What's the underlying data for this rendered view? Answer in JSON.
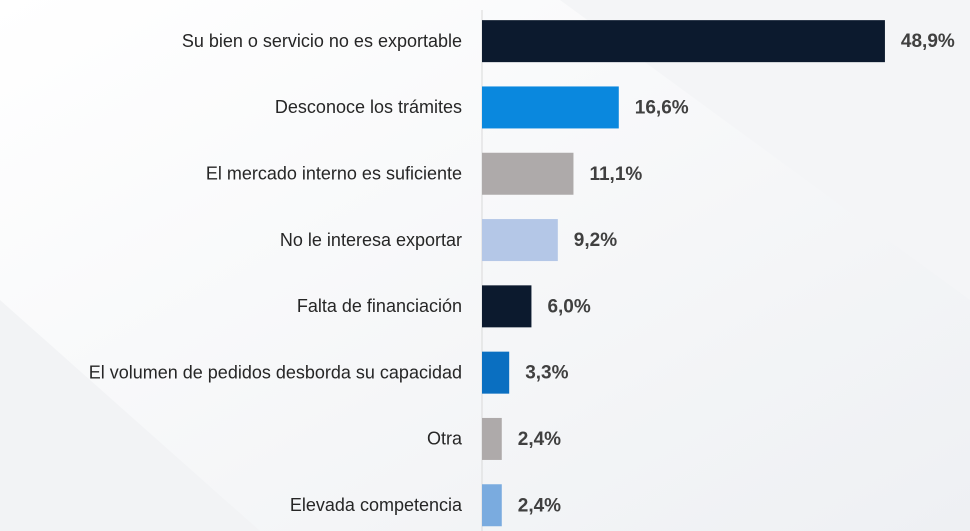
{
  "chart_data": {
    "type": "bar",
    "orientation": "horizontal",
    "categories": [
      "Su bien o servicio no es exportable",
      "Desconoce los trámites",
      "El mercado interno es suficiente",
      "No le interesa exportar",
      "Falta de financiación",
      "El volumen de pedidos desborda su capacidad",
      "Otra",
      "Elevada competencia"
    ],
    "values": [
      48.9,
      16.6,
      11.1,
      9.2,
      6.0,
      3.3,
      2.4,
      2.4
    ],
    "value_labels": [
      "48,9%",
      "16,6%",
      "11,1%",
      "9,2%",
      "6,0%",
      "3,3%",
      "2,4%",
      "2,4%"
    ],
    "colors": [
      "#0c1a2e",
      "#0a88de",
      "#aeaaaa",
      "#b4c7e7",
      "#0c1a2e",
      "#0a6fc1",
      "#aeaaaa",
      "#7aabdf"
    ],
    "xlim": [
      0,
      50
    ]
  }
}
